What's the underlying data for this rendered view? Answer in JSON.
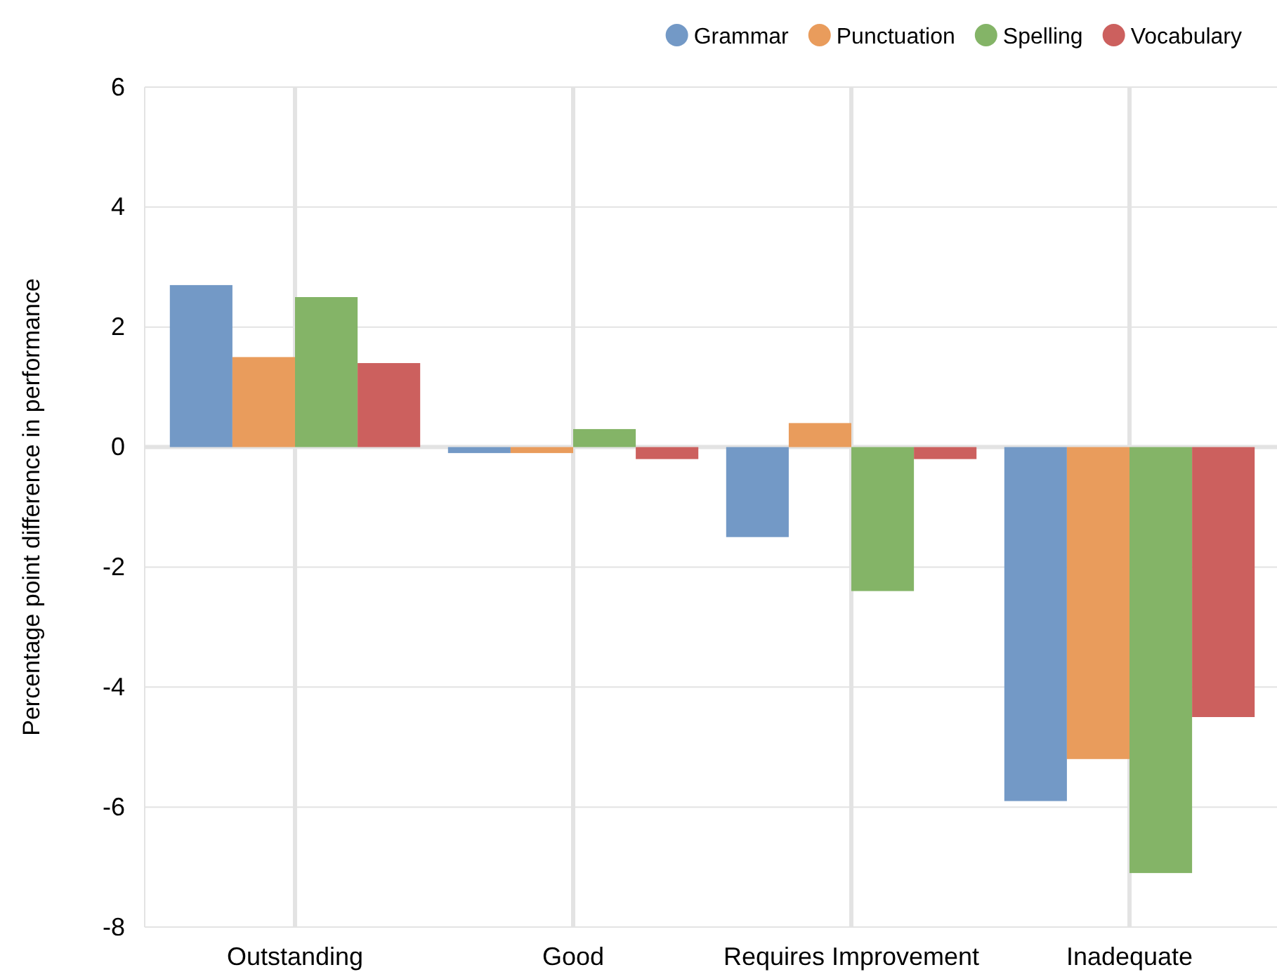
{
  "chart_data": {
    "type": "bar",
    "ylabel": "Percentage point difference in performance",
    "categories": [
      "Outstanding",
      "Good",
      "Requires Improvement",
      "Inadequate"
    ],
    "series": [
      {
        "name": "Grammar",
        "color": "#7399c6",
        "values": [
          2.7,
          -0.1,
          -1.5,
          -5.9
        ]
      },
      {
        "name": "Punctuation",
        "color": "#e99c5c",
        "values": [
          1.5,
          -0.1,
          0.4,
          -5.2
        ]
      },
      {
        "name": "Spelling",
        "color": "#84b467",
        "values": [
          2.5,
          0.3,
          -2.4,
          -7.1
        ]
      },
      {
        "name": "Vocabulary",
        "color": "#cc605e",
        "values": [
          1.4,
          -0.2,
          -0.2,
          -4.5
        ]
      }
    ],
    "ylim": [
      -8,
      6
    ],
    "yticks": [
      -8,
      -6,
      -4,
      -2,
      0,
      2,
      4,
      6
    ],
    "grid": true,
    "legend": "top right"
  }
}
